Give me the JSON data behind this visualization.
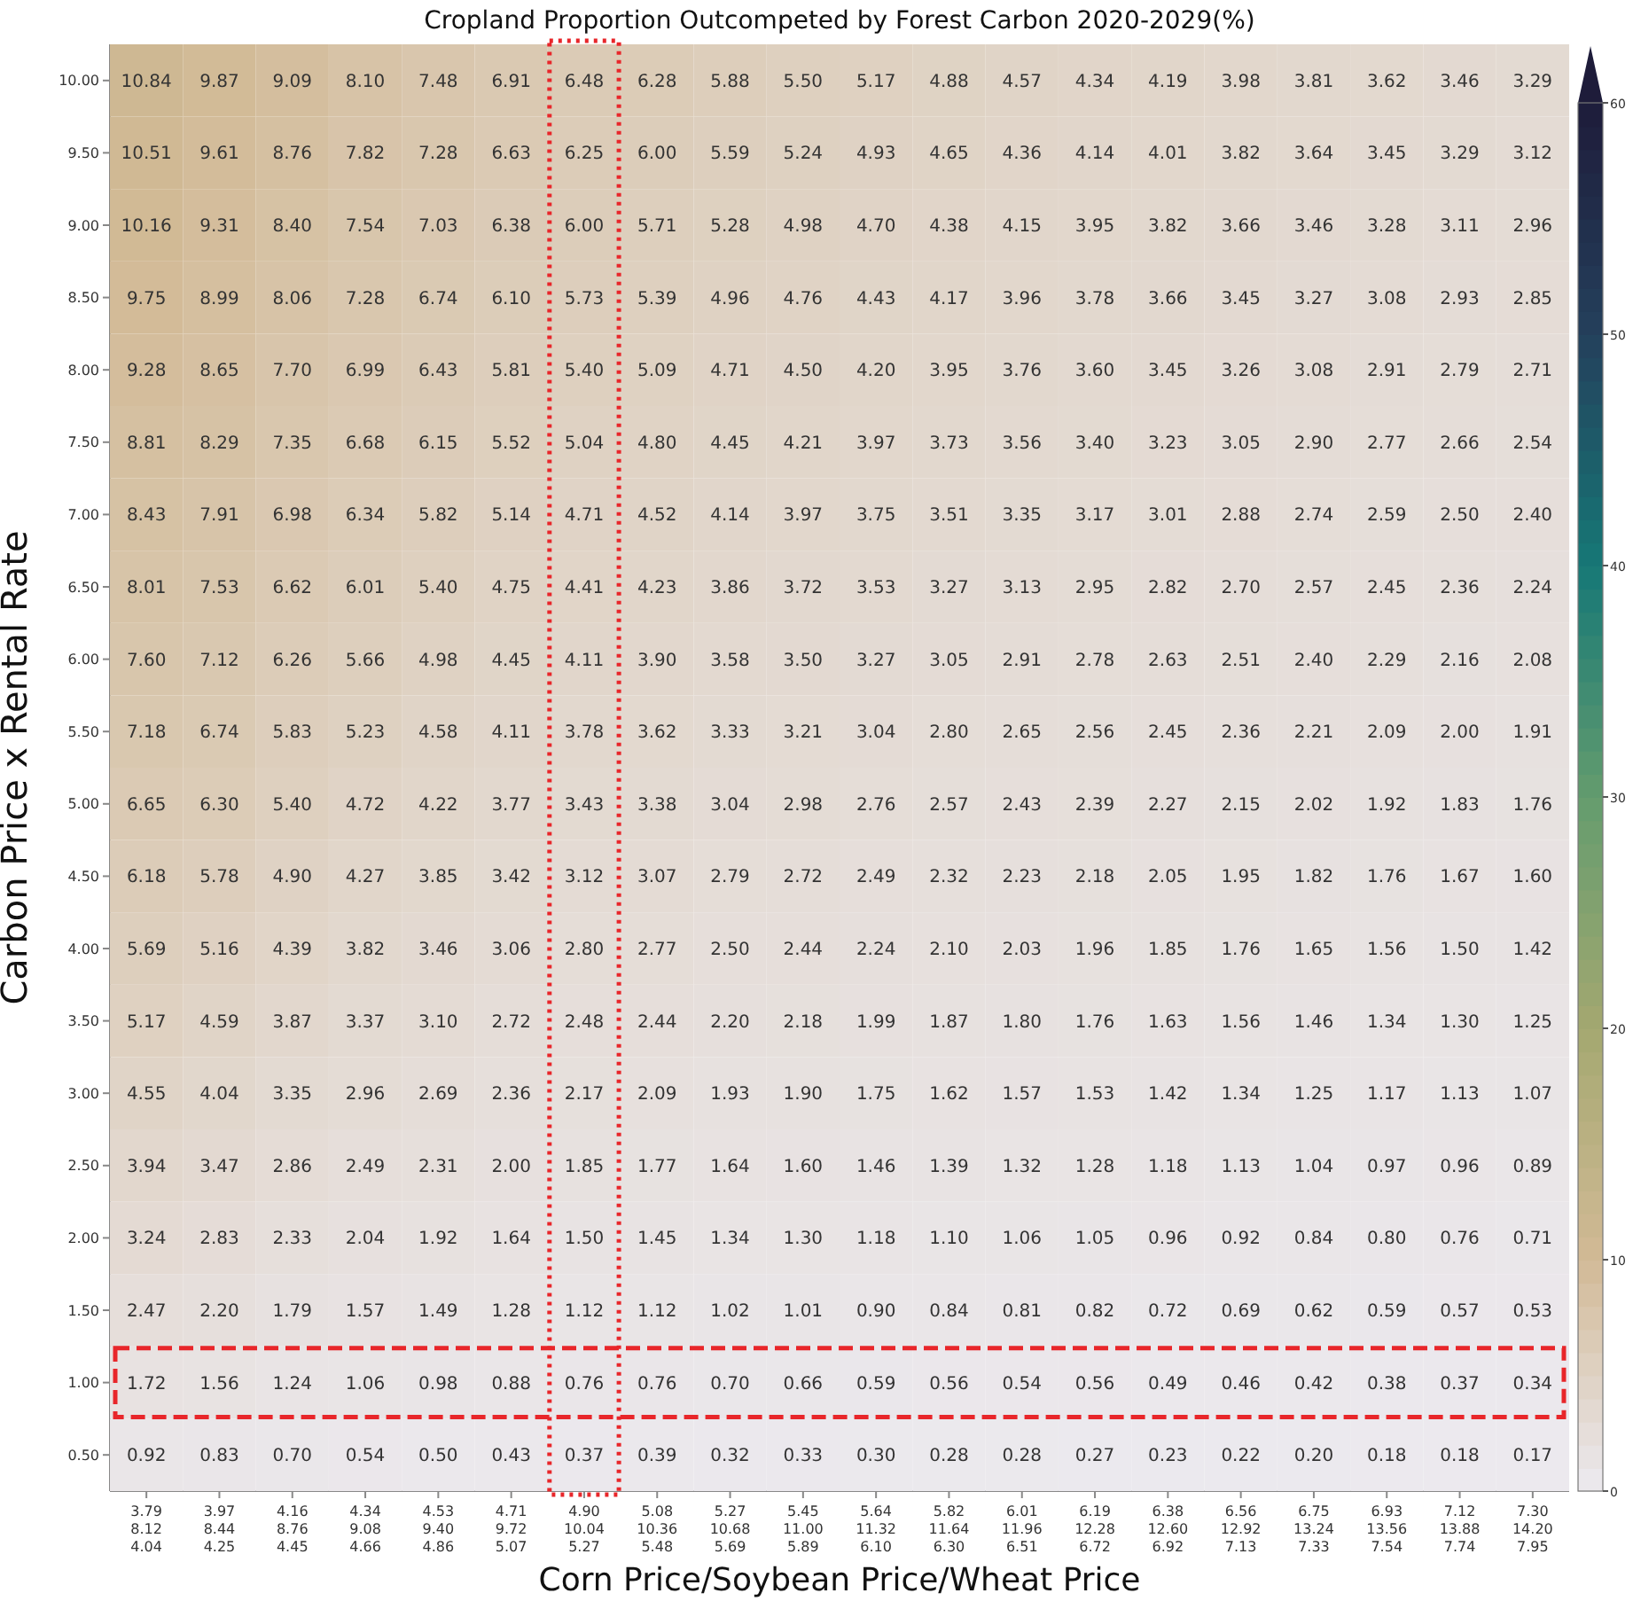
{
  "chart_data": {
    "type": "heatmap",
    "title": "Cropland Proportion Outcompeted by Forest Carbon 2020-2029(%)",
    "xlabel": "Corn Price/Soybean Price/Wheat Price",
    "ylabel": "Carbon Price x Rental Rate",
    "categories": [
      "3.79\n8.12\n4.04",
      "3.97\n8.44\n4.25",
      "4.16\n8.76\n4.45",
      "4.34\n9.08\n4.66",
      "4.53\n9.40\n4.86",
      "4.71\n9.72\n5.07",
      "4.90\n10.04\n5.27",
      "5.08\n10.36\n5.48",
      "5.27\n10.68\n5.69",
      "5.45\n11.00\n5.89",
      "5.64\n11.32\n6.10",
      "5.82\n11.64\n6.30",
      "6.01\n11.96\n6.51",
      "6.19\n12.28\n6.72",
      "6.38\n12.60\n6.92",
      "6.56\n12.92\n7.13",
      "6.75\n13.24\n7.33",
      "6.93\n13.56\n7.54",
      "7.12\n13.88\n7.74",
      "7.30\n14.20\n7.95"
    ],
    "y_categories": [
      "10.00",
      "9.50",
      "9.00",
      "8.50",
      "8.00",
      "7.50",
      "7.00",
      "6.50",
      "6.00",
      "5.50",
      "5.00",
      "4.50",
      "4.00",
      "3.50",
      "3.00",
      "2.50",
      "2.00",
      "1.50",
      "1.00",
      "0.50"
    ],
    "cells": [
      [
        10.84,
        9.87,
        9.09,
        8.1,
        7.48,
        6.91,
        6.48,
        6.28,
        5.88,
        5.5,
        5.17,
        4.88,
        4.57,
        4.34,
        4.19,
        3.98,
        3.81,
        3.62,
        3.46,
        3.29
      ],
      [
        10.51,
        9.61,
        8.76,
        7.82,
        7.28,
        6.63,
        6.25,
        6.0,
        5.59,
        5.24,
        4.93,
        4.65,
        4.36,
        4.14,
        4.01,
        3.82,
        3.64,
        3.45,
        3.29,
        3.12
      ],
      [
        10.16,
        9.31,
        8.4,
        7.54,
        7.03,
        6.38,
        6.0,
        5.71,
        5.28,
        4.98,
        4.7,
        4.38,
        4.15,
        3.95,
        3.82,
        3.66,
        3.46,
        3.28,
        3.11,
        2.96
      ],
      [
        9.75,
        8.99,
        8.06,
        7.28,
        6.74,
        6.1,
        5.73,
        5.39,
        4.96,
        4.76,
        4.43,
        4.17,
        3.96,
        3.78,
        3.66,
        3.45,
        3.27,
        3.08,
        2.93,
        2.85
      ],
      [
        9.28,
        8.65,
        7.7,
        6.99,
        6.43,
        5.81,
        5.4,
        5.09,
        4.71,
        4.5,
        4.2,
        3.95,
        3.76,
        3.6,
        3.45,
        3.26,
        3.08,
        2.91,
        2.79,
        2.71
      ],
      [
        8.81,
        8.29,
        7.35,
        6.68,
        6.15,
        5.52,
        5.04,
        4.8,
        4.45,
        4.21,
        3.97,
        3.73,
        3.56,
        3.4,
        3.23,
        3.05,
        2.9,
        2.77,
        2.66,
        2.54
      ],
      [
        8.43,
        7.91,
        6.98,
        6.34,
        5.82,
        5.14,
        4.71,
        4.52,
        4.14,
        3.97,
        3.75,
        3.51,
        3.35,
        3.17,
        3.01,
        2.88,
        2.74,
        2.59,
        2.5,
        2.4
      ],
      [
        8.01,
        7.53,
        6.62,
        6.01,
        5.4,
        4.75,
        4.41,
        4.23,
        3.86,
        3.72,
        3.53,
        3.27,
        3.13,
        2.95,
        2.82,
        2.7,
        2.57,
        2.45,
        2.36,
        2.24
      ],
      [
        7.6,
        7.12,
        6.26,
        5.66,
        4.98,
        4.45,
        4.11,
        3.9,
        3.58,
        3.5,
        3.27,
        3.05,
        2.91,
        2.78,
        2.63,
        2.51,
        2.4,
        2.29,
        2.16,
        2.08
      ],
      [
        7.18,
        6.74,
        5.83,
        5.23,
        4.58,
        4.11,
        3.78,
        3.62,
        3.33,
        3.21,
        3.04,
        2.8,
        2.65,
        2.56,
        2.45,
        2.36,
        2.21,
        2.09,
        2.0,
        1.91
      ],
      [
        6.65,
        6.3,
        5.4,
        4.72,
        4.22,
        3.77,
        3.43,
        3.38,
        3.04,
        2.98,
        2.76,
        2.57,
        2.43,
        2.39,
        2.27,
        2.15,
        2.02,
        1.92,
        1.83,
        1.76
      ],
      [
        6.18,
        5.78,
        4.9,
        4.27,
        3.85,
        3.42,
        3.12,
        3.07,
        2.79,
        2.72,
        2.49,
        2.32,
        2.23,
        2.18,
        2.05,
        1.95,
        1.82,
        1.76,
        1.67,
        1.6
      ],
      [
        5.69,
        5.16,
        4.39,
        3.82,
        3.46,
        3.06,
        2.8,
        2.77,
        2.5,
        2.44,
        2.24,
        2.1,
        2.03,
        1.96,
        1.85,
        1.76,
        1.65,
        1.56,
        1.5,
        1.42
      ],
      [
        5.17,
        4.59,
        3.87,
        3.37,
        3.1,
        2.72,
        2.48,
        2.44,
        2.2,
        2.18,
        1.99,
        1.87,
        1.8,
        1.76,
        1.63,
        1.56,
        1.46,
        1.34,
        1.3,
        1.25
      ],
      [
        4.55,
        4.04,
        3.35,
        2.96,
        2.69,
        2.36,
        2.17,
        2.09,
        1.93,
        1.9,
        1.75,
        1.62,
        1.57,
        1.53,
        1.42,
        1.34,
        1.25,
        1.17,
        1.13,
        1.07
      ],
      [
        3.94,
        3.47,
        2.86,
        2.49,
        2.31,
        2.0,
        1.85,
        1.77,
        1.64,
        1.6,
        1.46,
        1.39,
        1.32,
        1.28,
        1.18,
        1.13,
        1.04,
        0.97,
        0.96,
        0.89
      ],
      [
        3.24,
        2.83,
        2.33,
        2.04,
        1.92,
        1.64,
        1.5,
        1.45,
        1.34,
        1.3,
        1.18,
        1.1,
        1.06,
        1.05,
        0.96,
        0.92,
        0.84,
        0.8,
        0.76,
        0.71
      ],
      [
        2.47,
        2.2,
        1.79,
        1.57,
        1.49,
        1.28,
        1.12,
        1.12,
        1.02,
        1.01,
        0.9,
        0.84,
        0.81,
        0.82,
        0.72,
        0.69,
        0.62,
        0.59,
        0.57,
        0.53
      ],
      [
        1.72,
        1.56,
        1.24,
        1.06,
        0.98,
        0.88,
        0.76,
        0.76,
        0.7,
        0.66,
        0.59,
        0.56,
        0.54,
        0.56,
        0.49,
        0.46,
        0.42,
        0.38,
        0.37,
        0.34
      ],
      [
        0.92,
        0.83,
        0.7,
        0.54,
        0.5,
        0.43,
        0.37,
        0.39,
        0.32,
        0.33,
        0.3,
        0.28,
        0.28,
        0.27,
        0.23,
        0.22,
        0.2,
        0.18,
        0.18,
        0.17
      ]
    ],
    "cell_labels": [
      [
        "10.84",
        "9.87",
        "9.09",
        "8.10",
        "7.48",
        "6.91",
        "6.48",
        "6.28",
        "5.88",
        "5.50",
        "5.17",
        "4.88",
        "4.57",
        "4.34",
        "4.19",
        "3.98",
        "3.81",
        "3.62",
        "3.46",
        "3.29"
      ],
      [
        "10.51",
        "9.61",
        "8.76",
        "7.82",
        "7.28",
        "6.63",
        "6.25",
        "6.00",
        "5.59",
        "5.24",
        "4.93",
        "4.65",
        "4.36",
        "4.14",
        "4.01",
        "3.82",
        "3.64",
        "3.45",
        "3.29",
        "3.12"
      ],
      [
        "10.16",
        "9.31",
        "8.40",
        "7.54",
        "7.03",
        "6.38",
        "6.00",
        "5.71",
        "5.28",
        "4.98",
        "4.70",
        "4.38",
        "4.15",
        "3.95",
        "3.82",
        "3.66",
        "3.46",
        "3.28",
        "3.11",
        "2.96"
      ],
      [
        "9.75",
        "8.99",
        "8.06",
        "7.28",
        "6.74",
        "6.10",
        "5.73",
        "5.39",
        "4.96",
        "4.76",
        "4.43",
        "4.17",
        "3.96",
        "3.78",
        "3.66",
        "3.45",
        "3.27",
        "3.08",
        "2.93",
        "2.85"
      ],
      [
        "9.28",
        "8.65",
        "7.70",
        "6.99",
        "6.43",
        "5.81",
        "5.40",
        "5.09",
        "4.71",
        "4.50",
        "4.20",
        "3.95",
        "3.76",
        "3.60",
        "3.45",
        "3.26",
        "3.08",
        "2.91",
        "2.79",
        "2.71"
      ],
      [
        "8.81",
        "8.29",
        "7.35",
        "6.68",
        "6.15",
        "5.52",
        "5.04",
        "4.80",
        "4.45",
        "4.21",
        "3.97",
        "3.73",
        "3.56",
        "3.40",
        "3.23",
        "3.05",
        "2.90",
        "2.77",
        "2.66",
        "2.54"
      ],
      [
        "8.43",
        "7.91",
        "6.98",
        "6.34",
        "5.82",
        "5.14",
        "4.71",
        "4.52",
        "4.14",
        "3.97",
        "3.75",
        "3.51",
        "3.35",
        "3.17",
        "3.01",
        "2.88",
        "2.74",
        "2.59",
        "2.50",
        "2.40"
      ],
      [
        "8.01",
        "7.53",
        "6.62",
        "6.01",
        "5.40",
        "4.75",
        "4.41",
        "4.23",
        "3.86",
        "3.72",
        "3.53",
        "3.27",
        "3.13",
        "2.95",
        "2.82",
        "2.70",
        "2.57",
        "2.45",
        "2.36",
        "2.24"
      ],
      [
        "7.60",
        "7.12",
        "6.26",
        "5.66",
        "4.98",
        "4.45",
        "4.11",
        "3.90",
        "3.58",
        "3.50",
        "3.27",
        "3.05",
        "2.91",
        "2.78",
        "2.63",
        "2.51",
        "2.40",
        "2.29",
        "2.16",
        "2.08"
      ],
      [
        "7.18",
        "6.74",
        "5.83",
        "5.23",
        "4.58",
        "4.11",
        "3.78",
        "3.62",
        "3.33",
        "3.21",
        "3.04",
        "2.80",
        "2.65",
        "2.56",
        "2.45",
        "2.36",
        "2.21",
        "2.09",
        "2.00",
        "1.91"
      ],
      [
        "6.65",
        "6.30",
        "5.40",
        "4.72",
        "4.22",
        "3.77",
        "3.43",
        "3.38",
        "3.04",
        "2.98",
        "2.76",
        "2.57",
        "2.43",
        "2.39",
        "2.27",
        "2.15",
        "2.02",
        "1.92",
        "1.83",
        "1.76"
      ],
      [
        "6.18",
        "5.78",
        "4.90",
        "4.27",
        "3.85",
        "3.42",
        "3.12",
        "3.07",
        "2.79",
        "2.72",
        "2.49",
        "2.32",
        "2.23",
        "2.18",
        "2.05",
        "1.95",
        "1.82",
        "1.76",
        "1.67",
        "1.60"
      ],
      [
        "5.69",
        "5.16",
        "4.39",
        "3.82",
        "3.46",
        "3.06",
        "2.80",
        "2.77",
        "2.50",
        "2.44",
        "2.24",
        "2.10",
        "2.03",
        "1.96",
        "1.85",
        "1.76",
        "1.65",
        "1.56",
        "1.50",
        "1.42"
      ],
      [
        "5.17",
        "4.59",
        "3.87",
        "3.37",
        "3.10",
        "2.72",
        "2.48",
        "2.44",
        "2.20",
        "2.18",
        "1.99",
        "1.87",
        "1.80",
        "1.76",
        "1.63",
        "1.56",
        "1.46",
        "1.34",
        "1.30",
        "1.25"
      ],
      [
        "4.55",
        "4.04",
        "3.35",
        "2.96",
        "2.69",
        "2.36",
        "2.17",
        "2.09",
        "1.93",
        "1.90",
        "1.75",
        "1.62",
        "1.57",
        "1.53",
        "1.42",
        "1.34",
        "1.25",
        "1.17",
        "1.13",
        "1.07"
      ],
      [
        "3.94",
        "3.47",
        "2.86",
        "2.49",
        "2.31",
        "2.00",
        "1.85",
        "1.77",
        "1.64",
        "1.60",
        "1.46",
        "1.39",
        "1.32",
        "1.28",
        "1.18",
        "1.13",
        "1.04",
        "0.97",
        "0.96",
        "0.89"
      ],
      [
        "3.24",
        "2.83",
        "2.33",
        "2.04",
        "1.92",
        "1.64",
        "1.50",
        "1.45",
        "1.34",
        "1.30",
        "1.18",
        "1.10",
        "1.06",
        "1.05",
        "0.96",
        "0.92",
        "0.84",
        "0.80",
        "0.76",
        "0.71"
      ],
      [
        "2.47",
        "2.20",
        "1.79",
        "1.57",
        "1.49",
        "1.28",
        "1.12",
        "1.12",
        "1.02",
        "1.01",
        "0.90",
        "0.84",
        "0.81",
        "0.82",
        "0.72",
        "0.69",
        "0.62",
        "0.59",
        "0.57",
        "0.53"
      ],
      [
        "1.72",
        "1.56",
        "1.24",
        "1.06",
        "0.98",
        "0.88",
        "0.76",
        "0.76",
        "0.70",
        "0.66",
        "0.59",
        "0.56",
        "0.54",
        "0.56",
        "0.49",
        "0.46",
        "0.42",
        "0.38",
        "0.37",
        "0.34"
      ],
      [
        "0.92",
        "0.83",
        "0.70",
        "0.54",
        "0.50",
        "0.43",
        "0.37",
        "0.39",
        "0.32",
        "0.33",
        "0.30",
        "0.28",
        "0.28",
        "0.27",
        "0.23",
        "0.22",
        "0.20",
        "0.18",
        "0.18",
        "0.17"
      ]
    ],
    "clim": [
      0,
      60
    ],
    "cticks": [
      0,
      10,
      20,
      30,
      40,
      50,
      60
    ],
    "data_labels": true
  }
}
